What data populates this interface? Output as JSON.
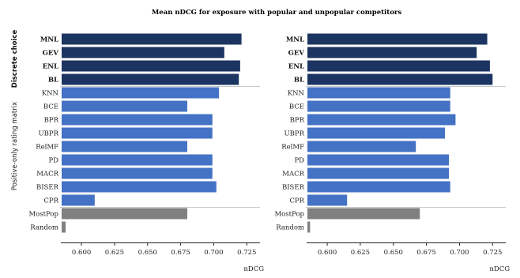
{
  "chart_data": {
    "type": "bar",
    "orientation": "horizontal",
    "title": "Mean nDCG for exposure with popular and unpopular competitors",
    "groups": [
      {
        "label": "Discrete choice",
        "bold": true,
        "members": [
          "MNL",
          "GEV",
          "ENL",
          "BL"
        ]
      },
      {
        "label": "Positive-only rating matrix",
        "bold": false,
        "members": [
          "KNN",
          "BCE",
          "BPR",
          "UBPR",
          "RelMF",
          "PD",
          "MACR",
          "BISER",
          "CPR"
        ]
      },
      {
        "label": "",
        "bold": false,
        "members": [
          "MostPop",
          "Random"
        ]
      }
    ],
    "categories": [
      "MNL",
      "GEV",
      "ENL",
      "BL",
      "KNN",
      "BCE",
      "BPR",
      "UBPR",
      "RelMF",
      "PD",
      "MACR",
      "BISER",
      "CPR",
      "MostPop",
      "Random"
    ],
    "bold_categories": [
      "MNL",
      "GEV",
      "ENL",
      "BL"
    ],
    "colors": {
      "discrete": "#1c3461",
      "positive": "#4472c4",
      "baseline": "#808080",
      "separator": "#c8c8c8",
      "axis": "#222222"
    },
    "category_colors": [
      "discrete",
      "discrete",
      "discrete",
      "discrete",
      "positive",
      "positive",
      "positive",
      "positive",
      "positive",
      "positive",
      "positive",
      "positive",
      "positive",
      "baseline",
      "baseline"
    ],
    "xlim": [
      0.585,
      0.735
    ],
    "xticks": [
      0.6,
      0.625,
      0.65,
      0.675,
      0.7,
      0.725
    ],
    "xtick_labels": [
      "0.600",
      "0.625",
      "0.650",
      "0.675",
      "0.700",
      "0.725"
    ],
    "panels": [
      {
        "xlabel": "nDCG",
        "values": [
          0.721,
          0.708,
          0.72,
          0.719,
          0.704,
          0.68,
          0.699,
          0.699,
          0.68,
          0.699,
          0.699,
          0.702,
          0.61,
          0.68,
          0.588
        ]
      },
      {
        "xlabel": "nDCG",
        "values": [
          0.721,
          0.713,
          0.723,
          0.725,
          0.693,
          0.693,
          0.697,
          0.689,
          0.667,
          0.692,
          0.692,
          0.693,
          0.615,
          0.67,
          0.587
        ]
      }
    ]
  }
}
